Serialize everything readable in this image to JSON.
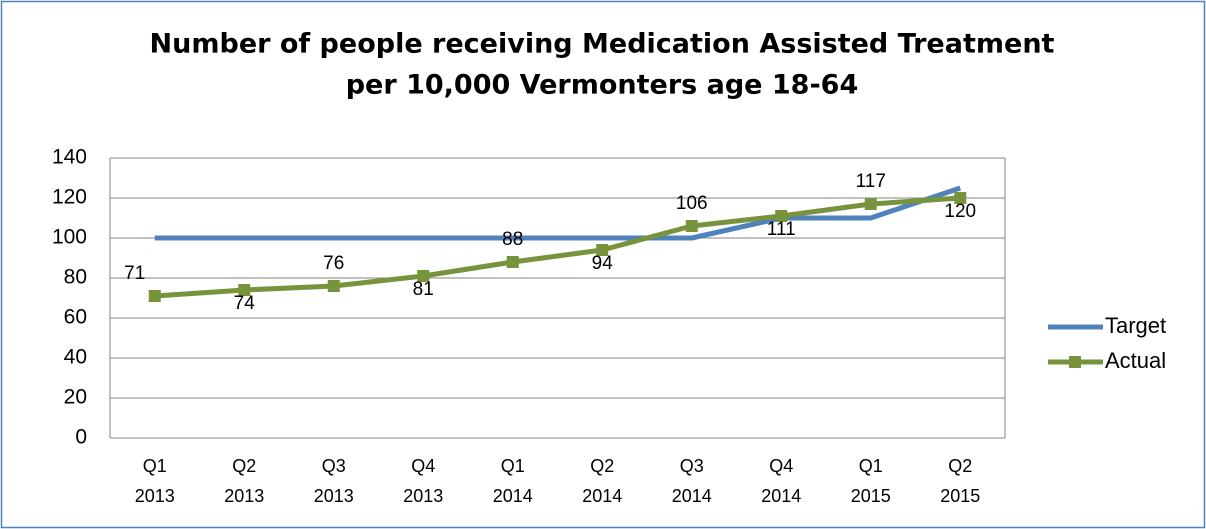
{
  "chart_data": {
    "type": "line",
    "title": [
      "Number of people receiving Medication Assisted Treatment",
      "per 10,000 Vermonters age 18-64"
    ],
    "categories": [
      [
        "Q1",
        "2013"
      ],
      [
        "Q2",
        "2013"
      ],
      [
        "Q3",
        "2013"
      ],
      [
        "Q4",
        "2013"
      ],
      [
        "Q1",
        "2014"
      ],
      [
        "Q2",
        "2014"
      ],
      [
        "Q3",
        "2014"
      ],
      [
        "Q4",
        "2014"
      ],
      [
        "Q1",
        "2015"
      ],
      [
        "Q2",
        "2015"
      ]
    ],
    "series": [
      {
        "name": "Target",
        "color": "#4f81bd",
        "marker": null,
        "values": [
          100,
          100,
          100,
          100,
          100,
          100,
          100,
          110,
          110,
          125
        ]
      },
      {
        "name": "Actual",
        "color": "#77933c",
        "marker": "square",
        "data_labels": true,
        "values": [
          71,
          74,
          76,
          81,
          88,
          94,
          106,
          111,
          117,
          120
        ]
      }
    ],
    "ylim": [
      0,
      140
    ],
    "yticks": [
      0,
      20,
      40,
      60,
      80,
      100,
      120,
      140
    ],
    "grid": true,
    "legend": "right"
  }
}
